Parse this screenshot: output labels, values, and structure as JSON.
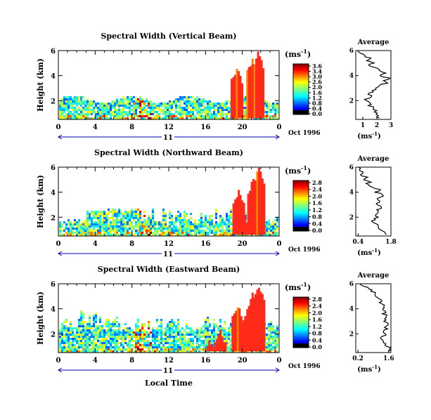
{
  "figure": {
    "xlabel": "Local Time",
    "day_label": "11",
    "date_label": "Oct 1996",
    "cbar_unit_html": "(ms",
    "cbar_unit_sup": "-1",
    "cbar_unit_close": ")",
    "avg_title": "Average",
    "ylabel": "Height (km)"
  },
  "chart_data": [
    {
      "type": "heatmap",
      "title": "Spectral Width (Vertical Beam)",
      "x_ticks": [
        "0",
        "4",
        "8",
        "12",
        "16",
        "20",
        "0"
      ],
      "y_ticks": [
        "6",
        "4",
        "2"
      ],
      "cbar_ticks": [
        "3.6",
        "3.4",
        "3.0",
        "2.6",
        "2.0",
        "1.6",
        "1.2",
        "0.8",
        "0.4",
        "0.0"
      ],
      "cbar_range": [
        0,
        3.6
      ],
      "xlim": [
        0,
        24
      ],
      "ylim": [
        0.5,
        6
      ],
      "avg_profile": {
        "xlim": [
          0.5,
          3
        ],
        "x_ticks": [
          "1",
          "2",
          "3"
        ],
        "heights": [
          6.0,
          5.8,
          5.6,
          5.4,
          5.2,
          5.0,
          4.8,
          4.6,
          4.4,
          4.2,
          4.0,
          3.8,
          3.6,
          3.4,
          3.2,
          3.0,
          2.8,
          2.6,
          2.4,
          2.2,
          2.0,
          1.8,
          1.6,
          1.4,
          1.2,
          1.0,
          0.8,
          0.6
        ],
        "values": [
          0.7,
          0.9,
          1.1,
          1.5,
          1.3,
          1.7,
          1.5,
          1.9,
          2.1,
          2.6,
          2.2,
          2.9,
          2.4,
          2.8,
          2.1,
          2.0,
          1.7,
          1.5,
          1.6,
          1.4,
          1.2,
          1.5,
          1.4,
          1.8,
          1.9,
          2.0,
          2.1,
          2.1
        ]
      }
    },
    {
      "type": "heatmap",
      "title": "Spectral Width (Northward Beam)",
      "x_ticks": [
        "0",
        "4",
        "8",
        "12",
        "16",
        "20",
        "0"
      ],
      "y_ticks": [
        "6",
        "4",
        "2"
      ],
      "cbar_ticks": [
        "2.8",
        "2.4",
        "2.0",
        "1.6",
        "1.2",
        "0.8",
        "0.4",
        "0.0"
      ],
      "cbar_range": [
        0,
        2.8
      ],
      "xlim": [
        0,
        24
      ],
      "ylim": [
        0.5,
        6
      ],
      "avg_profile": {
        "xlim": [
          0.3,
          1.8
        ],
        "x_ticks": [
          "0.4",
          "1.8"
        ],
        "heights": [
          6.0,
          5.8,
          5.6,
          5.4,
          5.2,
          5.0,
          4.8,
          4.6,
          4.4,
          4.2,
          4.0,
          3.8,
          3.6,
          3.4,
          3.2,
          3.0,
          2.8,
          2.6,
          2.4,
          2.2,
          2.0,
          1.8,
          1.6,
          1.4,
          1.2,
          1.0,
          0.8,
          0.6
        ],
        "values": [
          0.45,
          0.5,
          0.6,
          0.55,
          0.75,
          0.65,
          0.9,
          0.8,
          1.0,
          1.35,
          1.1,
          1.45,
          1.3,
          1.2,
          1.3,
          1.25,
          1.35,
          1.2,
          1.3,
          1.15,
          1.25,
          1.1,
          1.05,
          1.2,
          1.3,
          1.4,
          1.5,
          1.55
        ]
      }
    },
    {
      "type": "heatmap",
      "title": "Spectral Width (Eastward Beam)",
      "x_ticks": [
        "0",
        "4",
        "8",
        "12",
        "16",
        "20",
        "0"
      ],
      "y_ticks": [
        "6",
        "4",
        "2"
      ],
      "cbar_ticks": [
        "2.8",
        "2.4",
        "2.0",
        "1.6",
        "1.2",
        "0.8",
        "0.4",
        "0.0"
      ],
      "cbar_range": [
        0,
        2.8
      ],
      "xlim": [
        0,
        24
      ],
      "ylim": [
        0.5,
        6
      ],
      "avg_profile": {
        "xlim": [
          0.1,
          1.7
        ],
        "x_ticks": [
          "0.2",
          "1.6"
        ],
        "heights": [
          6.0,
          5.8,
          5.6,
          5.4,
          5.2,
          5.0,
          4.8,
          4.6,
          4.4,
          4.2,
          4.0,
          3.8,
          3.6,
          3.4,
          3.2,
          3.0,
          2.8,
          2.6,
          2.4,
          2.2,
          2.0,
          1.8,
          1.6,
          1.4,
          1.2,
          1.0,
          0.8,
          0.6
        ],
        "values": [
          0.3,
          0.5,
          0.65,
          0.8,
          0.95,
          1.05,
          1.2,
          1.3,
          1.25,
          1.35,
          1.3,
          1.4,
          1.35,
          1.5,
          1.45,
          1.4,
          1.55,
          1.45,
          1.5,
          1.4,
          1.45,
          1.3,
          1.25,
          1.4,
          1.5,
          1.55,
          1.6,
          1.6
        ]
      }
    }
  ]
}
